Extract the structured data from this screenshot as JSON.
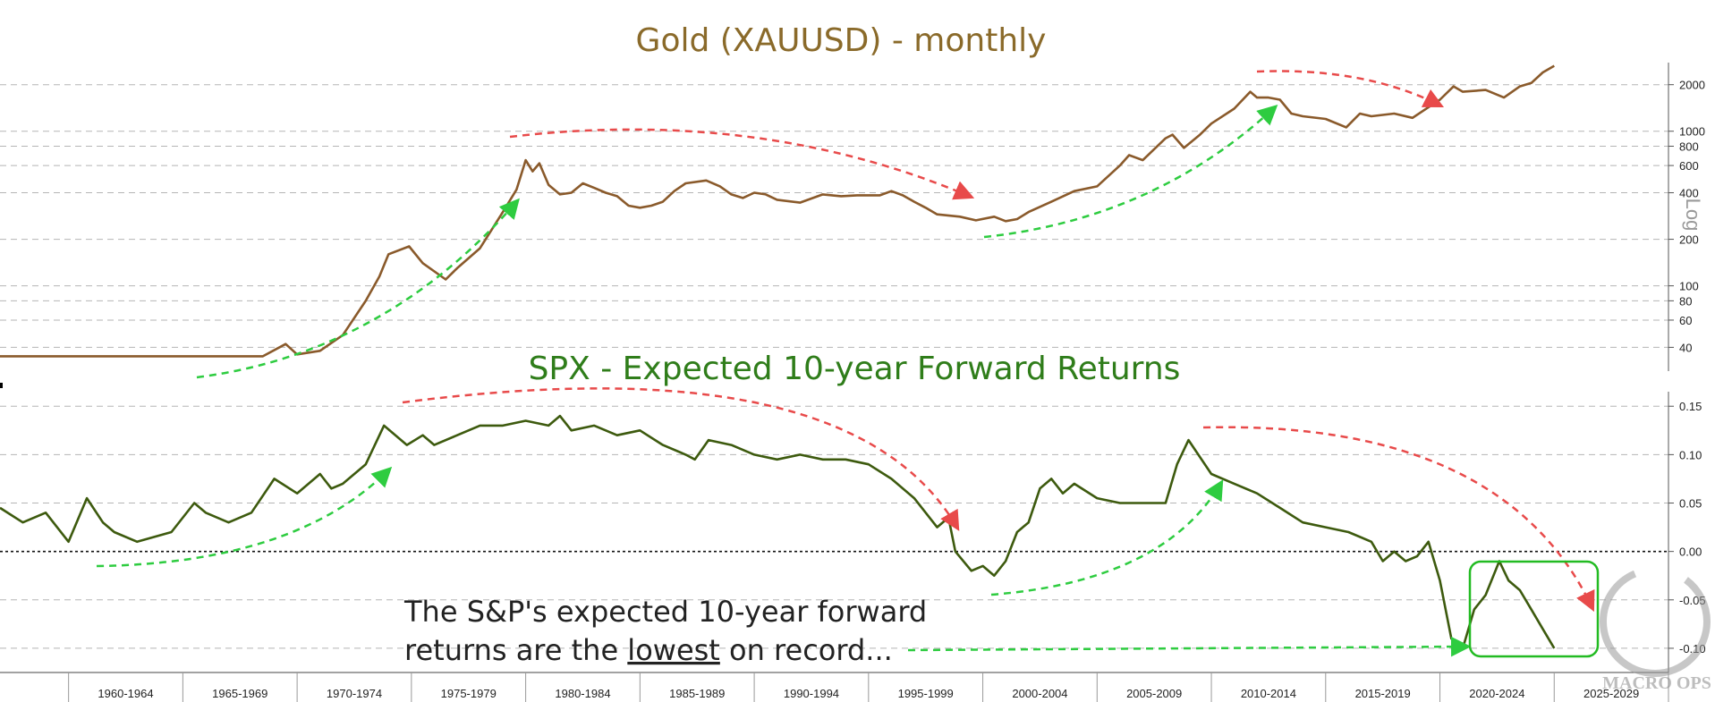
{
  "chart_data": [
    {
      "type": "line",
      "title": "Gold (XAUUSD) - monthly",
      "y_scale": "log",
      "y_scale_label": "Log",
      "y_ticks": [
        40,
        60,
        80,
        100,
        200,
        400,
        600,
        800,
        1000,
        2000
      ],
      "ylim": [
        30,
        2600
      ],
      "xlim": [
        1957,
        2030
      ],
      "x_tick_labels": [
        "1960-1964",
        "1965-1969",
        "1970-1974",
        "1975-1979",
        "1980-1984",
        "1985-1989",
        "1990-1994",
        "1995-1999",
        "2000-2004",
        "2005-2009",
        "2010-2014",
        "2015-2019",
        "2020-2024",
        "2025-2029"
      ],
      "grid": "horizontal dashed",
      "line_color": "#8a5a2b",
      "series": [
        {
          "x": [
            1957.0,
            1961.0,
            1966.0,
            1968.5,
            1969.5,
            1970.0,
            1971.0,
            1972.0,
            1973.0,
            1973.6,
            1974.0,
            1974.9,
            1975.5,
            1976.5,
            1977.0,
            1978.0,
            1979.0,
            1979.6,
            1980.0,
            1980.3,
            1980.6,
            1981.0,
            1981.5,
            1982.0,
            1982.5,
            1983.0,
            1983.5,
            1984.0,
            1984.5,
            1985.0,
            1985.5,
            1986.0,
            1986.5,
            1987.0,
            1987.9,
            1988.5,
            1989.0,
            1989.5,
            1990.0,
            1990.5,
            1991.0,
            1992.0,
            1993.0,
            1993.8,
            1994.5,
            1995.5,
            1996.0,
            1996.5,
            1997.0,
            1997.5,
            1998.0,
            1999.0,
            1999.7,
            2000.5,
            2001.0,
            2001.5,
            2002.0,
            2003.0,
            2004.0,
            2005.0,
            2006.0,
            2006.4,
            2007.0,
            2008.0,
            2008.3,
            2008.8,
            2009.5,
            2010.0,
            2011.0,
            2011.7,
            2012.0,
            2012.5,
            2013.0,
            2013.5,
            2014.0,
            2015.0,
            2015.9,
            2016.5,
            2017.0,
            2018.0,
            2018.8,
            2019.5,
            2020.0,
            2020.6,
            2021.0,
            2022.0,
            2022.8,
            2023.5,
            2024.0,
            2024.5,
            2025.0
          ],
          "y": [
            35,
            35,
            35,
            35,
            42,
            36,
            38,
            48,
            80,
            115,
            160,
            180,
            140,
            110,
            130,
            175,
            300,
            420,
            650,
            550,
            620,
            450,
            390,
            400,
            460,
            430,
            400,
            380,
            330,
            320,
            330,
            350,
            410,
            460,
            480,
            440,
            390,
            370,
            400,
            390,
            360,
            345,
            390,
            380,
            385,
            385,
            410,
            385,
            350,
            320,
            290,
            280,
            265,
            280,
            262,
            270,
            300,
            350,
            410,
            440,
            600,
            700,
            650,
            900,
            950,
            780,
            950,
            1120,
            1400,
            1800,
            1650,
            1650,
            1600,
            1300,
            1250,
            1200,
            1060,
            1300,
            1250,
            1300,
            1220,
            1430,
            1600,
            1950,
            1800,
            1850,
            1650,
            1950,
            2050,
            2400,
            2650
          ]
        }
      ]
    },
    {
      "type": "line",
      "title": "SPX - Expected 10-year Forward Returns",
      "y_ticks": [
        -0.1,
        -0.05,
        0.0,
        0.05,
        0.1,
        0.15
      ],
      "y_tick_labels": [
        "-0.10",
        "-0.05",
        "0.00",
        "0.05",
        "0.10",
        "0.15"
      ],
      "ylim": [
        -0.125,
        0.165
      ],
      "xlim": [
        1957,
        2030
      ],
      "grid": "horizontal dashed",
      "zero_line": "dotted black",
      "line_color": "#3d5a0e",
      "series": [
        {
          "x": [
            1957.0,
            1958.0,
            1959.0,
            1960.0,
            1960.8,
            1961.5,
            1962.0,
            1963.0,
            1964.5,
            1965.5,
            1966.0,
            1967.0,
            1968.0,
            1969.0,
            1970.0,
            1971.0,
            1971.5,
            1972.0,
            1973.0,
            1973.8,
            1974.8,
            1975.5,
            1976.0,
            1977.0,
            1978.0,
            1979.0,
            1980.0,
            1981.0,
            1981.5,
            1982.0,
            1983.0,
            1984.0,
            1985.0,
            1986.0,
            1987.0,
            1987.4,
            1988.0,
            1989.0,
            1990.0,
            1991.0,
            1992.0,
            1993.0,
            1994.0,
            1995.0,
            1996.0,
            1997.0,
            1998.0,
            1998.5,
            1998.8,
            1999.5,
            2000.0,
            2000.5,
            2001.0,
            2001.5,
            2002.0,
            2002.5,
            2003.0,
            2003.5,
            2004.0,
            2005.0,
            2006.0,
            2007.0,
            2008.0,
            2008.5,
            2009.0,
            2010.0,
            2011.0,
            2012.0,
            2013.0,
            2014.0,
            2015.0,
            2016.0,
            2017.0,
            2017.5,
            2018.0,
            2018.5,
            2019.0,
            2019.5,
            2020.0,
            2020.5,
            2021.0,
            2021.5,
            2022.0,
            2022.6,
            2023.0,
            2023.5,
            2024.0,
            2024.5,
            2025.0
          ],
          "y": [
            0.045,
            0.03,
            0.04,
            0.01,
            0.055,
            0.03,
            0.02,
            0.01,
            0.02,
            0.05,
            0.04,
            0.03,
            0.04,
            0.075,
            0.06,
            0.08,
            0.065,
            0.07,
            0.09,
            0.13,
            0.11,
            0.12,
            0.11,
            0.12,
            0.13,
            0.13,
            0.135,
            0.13,
            0.14,
            0.125,
            0.13,
            0.12,
            0.125,
            0.11,
            0.1,
            0.095,
            0.115,
            0.11,
            0.1,
            0.095,
            0.1,
            0.095,
            0.095,
            0.09,
            0.075,
            0.055,
            0.025,
            0.035,
            0.0,
            -0.02,
            -0.015,
            -0.025,
            -0.01,
            0.02,
            0.03,
            0.065,
            0.075,
            0.06,
            0.07,
            0.055,
            0.05,
            0.05,
            0.05,
            0.09,
            0.115,
            0.08,
            0.07,
            0.06,
            0.045,
            0.03,
            0.025,
            0.02,
            0.01,
            -0.01,
            0.0,
            -0.01,
            -0.005,
            0.01,
            -0.03,
            -0.09,
            -0.1,
            -0.06,
            -0.045,
            -0.01,
            -0.03,
            -0.04,
            -0.06,
            -0.08,
            -0.1
          ]
        }
      ]
    }
  ],
  "annotations": {
    "note_line1": "The S&P's expected 10-year forward",
    "note_line2_before": "returns are the ",
    "note_line2_emph": "lowest",
    "note_line2_after": " on record...",
    "watermark": "MACRO OPS"
  },
  "colors": {
    "gold_line": "#8a5a2b",
    "spx_line": "#3d5a0e",
    "spx_title": "#2f7d1a",
    "gold_title": "#8a6a2a",
    "arrow_red": "#e84a4a",
    "arrow_green": "#2ecc40",
    "highlight_box": "#22bb22",
    "note_text": "#222222"
  }
}
